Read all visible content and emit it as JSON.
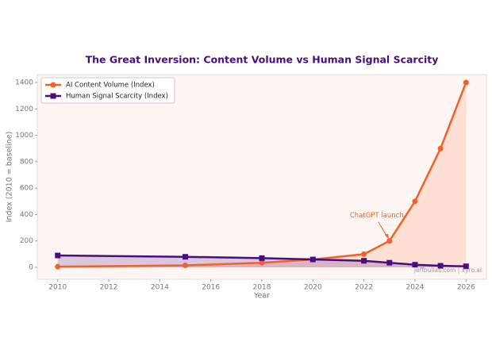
{
  "chart_data": {
    "type": "line",
    "title": "The Great Inversion: Content Volume vs Human Signal Scarcity",
    "x_label": "Year",
    "y_label": "Index (2010 = baseline)",
    "x": [
      2010,
      2015,
      2018,
      2020,
      2022,
      2023,
      2024,
      2025,
      2026
    ],
    "series": [
      {
        "name": "AI Content Volume (Index)",
        "color": "#f4602a",
        "marker": "circle",
        "values": [
          5,
          15,
          35,
          60,
          100,
          200,
          500,
          900,
          1400
        ]
      },
      {
        "name": "Human Signal Scarcity (Index)",
        "color": "#4a0d80",
        "marker": "square",
        "values": [
          90,
          80,
          70,
          60,
          50,
          35,
          20,
          12,
          8
        ]
      }
    ],
    "xlim": [
      2009.2,
      2026.8
    ],
    "ylim": [
      -90,
      1460
    ],
    "xticks": [
      2010,
      2012,
      2014,
      2016,
      2018,
      2020,
      2022,
      2024,
      2026
    ],
    "yticks": [
      0,
      200,
      400,
      600,
      800,
      1000,
      1200,
      1400
    ],
    "grid": false,
    "legend": "upper-left",
    "annotations": [
      {
        "text": "ChatGPT launch",
        "x": 2023,
        "y": 200
      }
    ],
    "watermark": "jeffbullas.com | xyro.ai"
  }
}
